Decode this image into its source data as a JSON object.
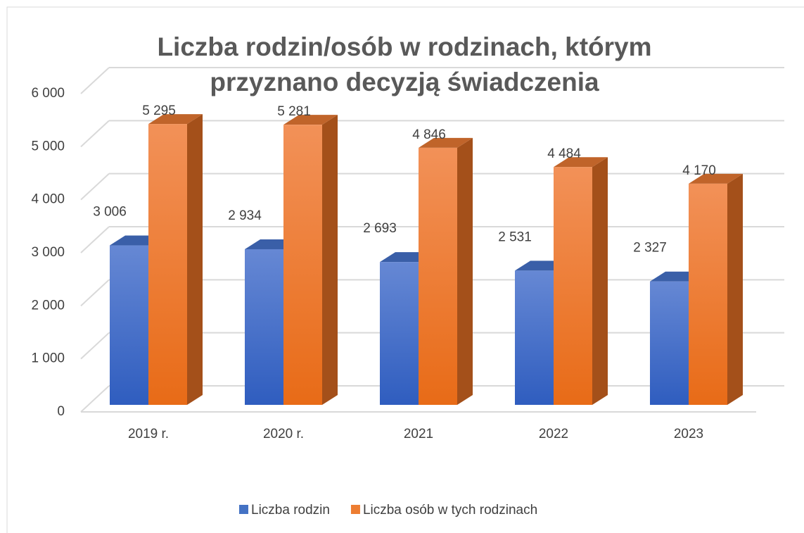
{
  "chart_data": {
    "type": "bar3d",
    "title": "Liczba rodzin/osób w rodzinach, którym przyznano decyzją świadczenia",
    "categories": [
      "2019 r.",
      "2020 r.",
      "2021",
      "2022",
      "2023"
    ],
    "series": [
      {
        "name": "Liczba rodzin",
        "color": "#4472c4",
        "values": [
          3006,
          2934,
          2693,
          2531,
          2327
        ],
        "value_labels": [
          "3 006",
          "2 934",
          "2 693",
          "2 531",
          "2 327"
        ]
      },
      {
        "name": "Liczba osób w tych rodzinach",
        "color": "#ed7d31",
        "values": [
          5295,
          5281,
          4846,
          4484,
          4170
        ],
        "value_labels": [
          "5 295",
          "5 281",
          "4 846",
          "4 484",
          "4 170"
        ]
      }
    ],
    "ylim": [
      0,
      6000
    ],
    "yticks": [
      {
        "value": 0,
        "label": "0"
      },
      {
        "value": 1000,
        "label": "1 000"
      },
      {
        "value": 2000,
        "label": "2 000"
      },
      {
        "value": 3000,
        "label": "3 000"
      },
      {
        "value": 4000,
        "label": "4 000"
      },
      {
        "value": 5000,
        "label": "5 000"
      },
      {
        "value": 6000,
        "label": "6 000"
      }
    ],
    "grid": true,
    "legend": "bottom"
  }
}
